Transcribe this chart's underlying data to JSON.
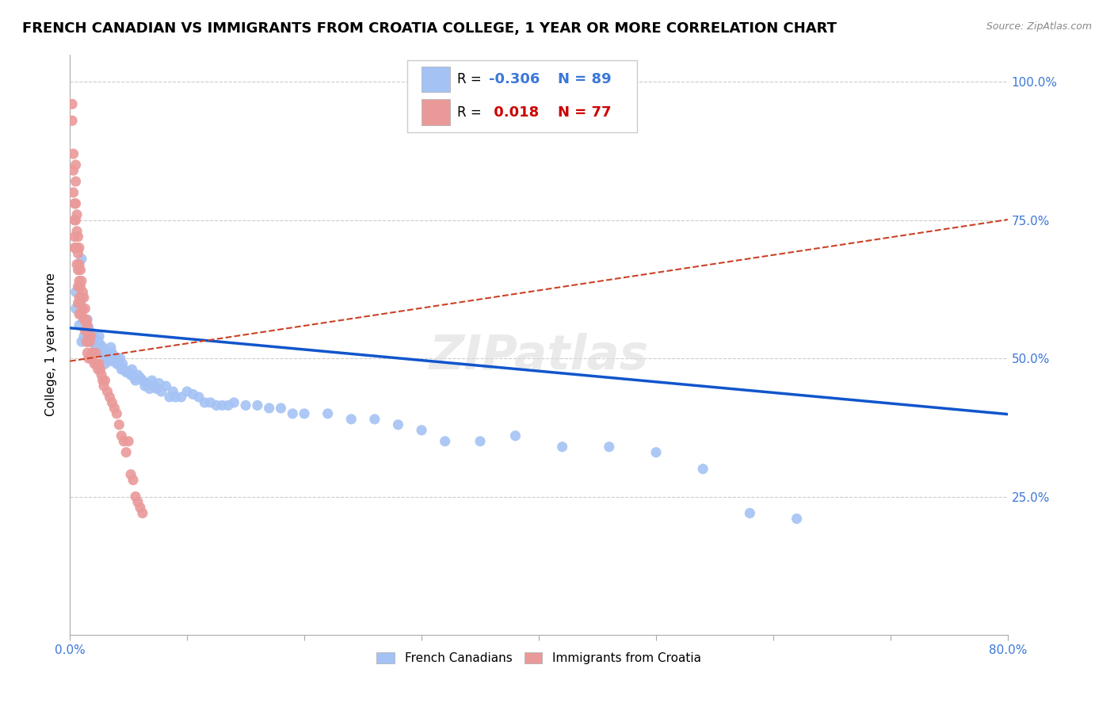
{
  "title": "FRENCH CANADIAN VS IMMIGRANTS FROM CROATIA COLLEGE, 1 YEAR OR MORE CORRELATION CHART",
  "source_text": "Source: ZipAtlas.com",
  "ylabel": "College, 1 year or more",
  "xmin": 0.0,
  "xmax": 0.8,
  "ymin": 0.0,
  "ymax": 1.05,
  "blue_color": "#a4c2f4",
  "pink_color": "#ea9999",
  "blue_line_color": "#1155cc",
  "pink_line_color": "#cc4125",
  "watermark": "ZIPatlas",
  "blue_regression": {
    "intercept": 0.555,
    "slope": -0.195
  },
  "pink_regression": {
    "intercept": 0.495,
    "slope": 0.32
  },
  "blue_scatter_x": [
    0.005,
    0.005,
    0.008,
    0.01,
    0.01,
    0.012,
    0.012,
    0.014,
    0.015,
    0.015,
    0.016,
    0.017,
    0.018,
    0.019,
    0.02,
    0.022,
    0.022,
    0.024,
    0.025,
    0.026,
    0.027,
    0.028,
    0.03,
    0.03,
    0.032,
    0.033,
    0.034,
    0.035,
    0.036,
    0.037,
    0.038,
    0.039,
    0.04,
    0.042,
    0.043,
    0.044,
    0.045,
    0.046,
    0.048,
    0.05,
    0.052,
    0.053,
    0.055,
    0.056,
    0.058,
    0.06,
    0.062,
    0.064,
    0.065,
    0.068,
    0.07,
    0.072,
    0.074,
    0.076,
    0.078,
    0.082,
    0.085,
    0.088,
    0.09,
    0.095,
    0.1,
    0.105,
    0.11,
    0.115,
    0.12,
    0.125,
    0.13,
    0.135,
    0.14,
    0.15,
    0.16,
    0.17,
    0.18,
    0.19,
    0.2,
    0.22,
    0.24,
    0.26,
    0.28,
    0.3,
    0.32,
    0.35,
    0.38,
    0.42,
    0.46,
    0.5,
    0.54,
    0.58,
    0.62
  ],
  "blue_scatter_y": [
    0.62,
    0.59,
    0.56,
    0.68,
    0.53,
    0.57,
    0.54,
    0.555,
    0.57,
    0.53,
    0.555,
    0.545,
    0.54,
    0.53,
    0.545,
    0.535,
    0.52,
    0.53,
    0.54,
    0.525,
    0.51,
    0.52,
    0.505,
    0.49,
    0.51,
    0.5,
    0.495,
    0.52,
    0.51,
    0.505,
    0.495,
    0.5,
    0.49,
    0.49,
    0.5,
    0.48,
    0.49,
    0.48,
    0.475,
    0.475,
    0.47,
    0.48,
    0.465,
    0.46,
    0.47,
    0.465,
    0.46,
    0.45,
    0.455,
    0.445,
    0.46,
    0.45,
    0.445,
    0.455,
    0.44,
    0.45,
    0.43,
    0.44,
    0.43,
    0.43,
    0.44,
    0.435,
    0.43,
    0.42,
    0.42,
    0.415,
    0.415,
    0.415,
    0.42,
    0.415,
    0.415,
    0.41,
    0.41,
    0.4,
    0.4,
    0.4,
    0.39,
    0.39,
    0.38,
    0.37,
    0.35,
    0.35,
    0.36,
    0.34,
    0.34,
    0.33,
    0.3,
    0.22,
    0.21
  ],
  "pink_scatter_x": [
    0.002,
    0.002,
    0.003,
    0.003,
    0.003,
    0.004,
    0.004,
    0.004,
    0.004,
    0.005,
    0.005,
    0.005,
    0.005,
    0.005,
    0.006,
    0.006,
    0.006,
    0.006,
    0.007,
    0.007,
    0.007,
    0.007,
    0.007,
    0.008,
    0.008,
    0.008,
    0.008,
    0.008,
    0.009,
    0.009,
    0.009,
    0.01,
    0.01,
    0.01,
    0.011,
    0.011,
    0.012,
    0.012,
    0.013,
    0.013,
    0.014,
    0.014,
    0.015,
    0.015,
    0.016,
    0.016,
    0.017,
    0.018,
    0.018,
    0.019,
    0.02,
    0.021,
    0.022,
    0.023,
    0.024,
    0.025,
    0.026,
    0.027,
    0.028,
    0.029,
    0.03,
    0.032,
    0.034,
    0.036,
    0.038,
    0.04,
    0.042,
    0.044,
    0.046,
    0.048,
    0.05,
    0.052,
    0.054,
    0.056,
    0.058,
    0.06,
    0.062
  ],
  "pink_scatter_y": [
    0.96,
    0.93,
    0.87,
    0.84,
    0.8,
    0.78,
    0.75,
    0.72,
    0.7,
    0.85,
    0.82,
    0.78,
    0.75,
    0.7,
    0.76,
    0.73,
    0.7,
    0.67,
    0.72,
    0.69,
    0.66,
    0.63,
    0.6,
    0.7,
    0.67,
    0.64,
    0.61,
    0.58,
    0.66,
    0.63,
    0.6,
    0.64,
    0.61,
    0.58,
    0.62,
    0.59,
    0.61,
    0.57,
    0.59,
    0.55,
    0.57,
    0.53,
    0.56,
    0.51,
    0.54,
    0.5,
    0.53,
    0.54,
    0.5,
    0.51,
    0.51,
    0.49,
    0.51,
    0.49,
    0.48,
    0.49,
    0.48,
    0.47,
    0.46,
    0.45,
    0.46,
    0.44,
    0.43,
    0.42,
    0.41,
    0.4,
    0.38,
    0.36,
    0.35,
    0.33,
    0.35,
    0.29,
    0.28,
    0.25,
    0.24,
    0.23,
    0.22
  ],
  "title_fontsize": 13,
  "axis_label_fontsize": 11,
  "tick_fontsize": 11
}
